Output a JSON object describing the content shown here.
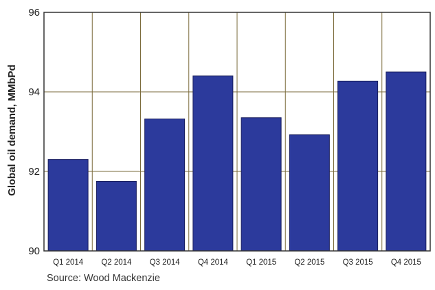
{
  "chart_data": {
    "type": "bar",
    "categories": [
      "Q1 2014",
      "Q2 2014",
      "Q3 2014",
      "Q4 2014",
      "Q1 2015",
      "Q2 2015",
      "Q3 2015",
      "Q4 2015"
    ],
    "values": [
      92.3,
      91.75,
      93.32,
      94.4,
      93.35,
      92.92,
      94.27,
      94.5
    ],
    "ylabel": "Global oil demand, MMbPd",
    "xlabel": "",
    "ylim": [
      90,
      96
    ],
    "yticks": [
      "90",
      "92",
      "94",
      "96"
    ],
    "grid": true,
    "colors": {
      "bar": "#2c3a9c",
      "bar_edge": "#1a1f5e",
      "grid": "#7a6a3a",
      "frame": "#333333"
    }
  },
  "source": "Source: Wood Mackenzie"
}
